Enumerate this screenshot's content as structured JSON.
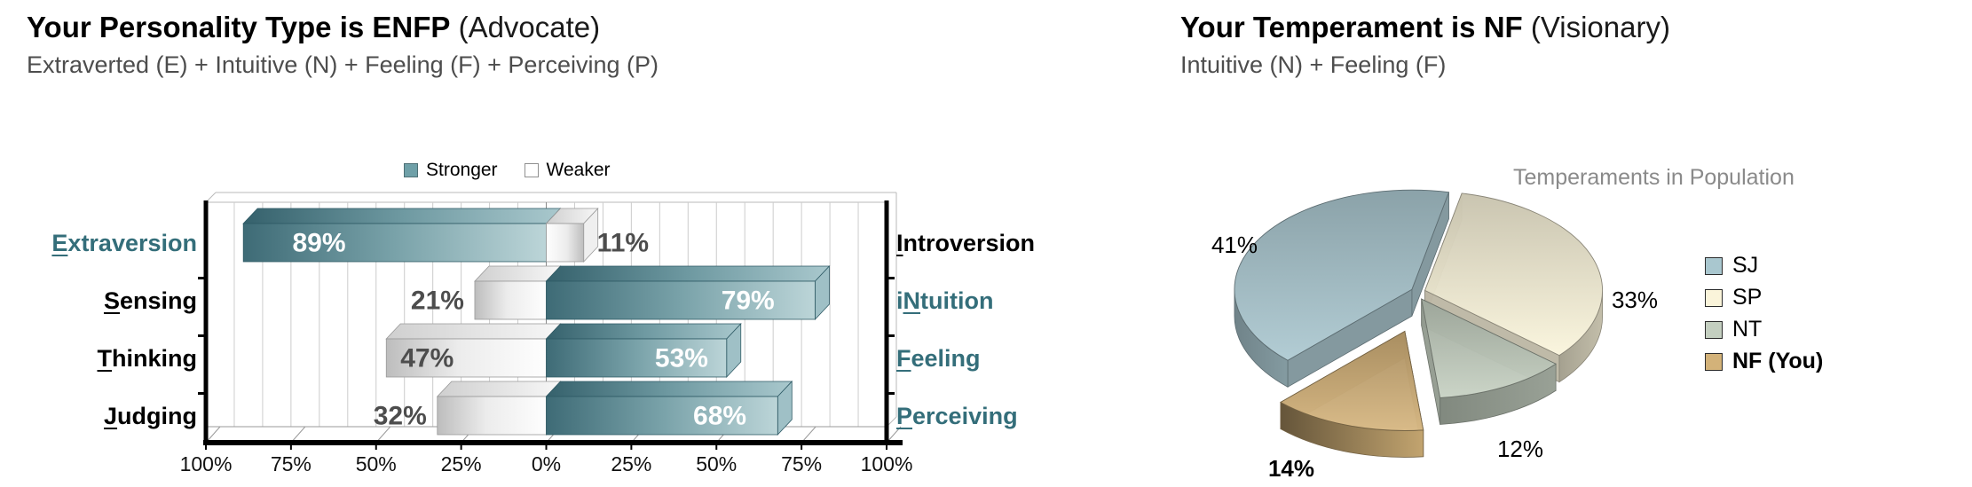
{
  "left_panel": {
    "title_strong": "Your Personality Type is ENFP",
    "title_paren": " (Advocate)",
    "subtitle": "Extraverted (E) + Intuitive (N) + Feeling (F) + Perceiving (P)"
  },
  "right_panel": {
    "title_strong": "Your Temperament is NF",
    "title_paren": " (Visionary)",
    "subtitle": "Intuitive (N) + Feeling (F)"
  },
  "colors": {
    "accent_teal_text": "#346E7A",
    "stronger_bar_teal": "#6FA0A8",
    "weaker_bar_white": "#FFFFFF",
    "pct_label_gray": "#4D4D4D",
    "pie_sj": "#A9C7CF",
    "pie_sp": "#FAF4DA",
    "pie_nt": "#C4CFC0",
    "pie_nf": "#D3B279"
  },
  "chart_data": [
    {
      "type": "bar",
      "variant": "horizontal-diverging-3d",
      "series": [
        {
          "name": "Stronger"
        },
        {
          "name": "Weaker"
        }
      ],
      "categories": [
        {
          "left_label": "Extraversion",
          "left_ul": 0,
          "right_label": "Introversion",
          "right_ul": 0,
          "stronger_side": "left",
          "stronger_pct": 89,
          "weaker_pct": 11
        },
        {
          "left_label": "Sensing",
          "left_ul": 0,
          "right_label": "iNtuition",
          "right_ul": 1,
          "stronger_side": "right",
          "stronger_pct": 79,
          "weaker_pct": 21
        },
        {
          "left_label": "Thinking",
          "left_ul": 0,
          "right_label": "Feeling",
          "right_ul": 0,
          "stronger_side": "right",
          "stronger_pct": 53,
          "weaker_pct": 47
        },
        {
          "left_label": "Judging",
          "left_ul": 0,
          "right_label": "Perceiving",
          "right_ul": 0,
          "stronger_side": "right",
          "stronger_pct": 68,
          "weaker_pct": 32
        }
      ],
      "axis_ticks": [
        "100%",
        "75%",
        "50%",
        "25%",
        "0%",
        "25%",
        "50%",
        "75%",
        "100%"
      ],
      "xlim_pct": [
        -100,
        100
      ],
      "grid": true,
      "legend_position": "top-center"
    },
    {
      "type": "pie",
      "variant": "3d-exploded",
      "title": "Temperaments in Population",
      "slices": [
        {
          "label": "SJ",
          "value": 41,
          "pct_label": "41%",
          "highlighted": false
        },
        {
          "label": "SP",
          "value": 33,
          "pct_label": "33%",
          "highlighted": false
        },
        {
          "label": "NT",
          "value": 12,
          "pct_label": "12%",
          "highlighted": false
        },
        {
          "label": "NF (You)",
          "value": 14,
          "pct_label": "14%",
          "highlighted": true
        }
      ],
      "legend_position": "right"
    }
  ]
}
